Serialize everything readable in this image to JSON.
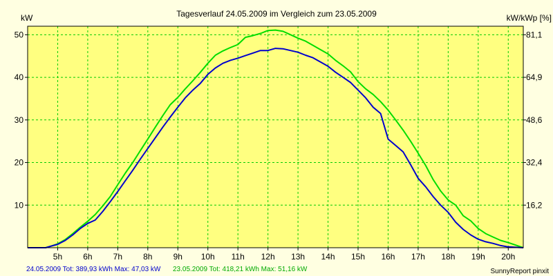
{
  "chart_data": {
    "type": "line",
    "title": "Tagesverlauf 24.05.2009 im Vergleich zum 23.05.2009",
    "ylabel": "kW",
    "ylabel_right": "kW/kWp [%]",
    "ylim": [
      0,
      52
    ],
    "yticks": [
      10,
      20,
      30,
      40,
      50
    ],
    "yticks_right": [
      {
        "y": 10,
        "label": "16,2"
      },
      {
        "y": 20,
        "label": "32,4"
      },
      {
        "y": 30,
        "label": "48,6"
      },
      {
        "y": 40,
        "label": "64,9"
      },
      {
        "y": 50,
        "label": "81,1"
      }
    ],
    "xlim": [
      4.0,
      20.5
    ],
    "xticks": [
      5,
      6,
      7,
      8,
      9,
      10,
      11,
      12,
      13,
      14,
      15,
      16,
      17,
      18,
      19,
      20
    ],
    "xtick_labels": [
      "5h",
      "6h",
      "7h",
      "8h",
      "9h",
      "10h",
      "11h",
      "12h",
      "13h",
      "14h",
      "15h",
      "16h",
      "17h",
      "18h",
      "19h",
      "20h"
    ],
    "grid": true,
    "background": "#ffffe1",
    "plot_background": "#ffff80",
    "grid_color": "#00cc00",
    "series": [
      {
        "name": "24.05.2009",
        "color": "#0000cc",
        "x": [
          4.0,
          4.6,
          4.75,
          5.0,
          5.25,
          5.5,
          5.75,
          6.0,
          6.25,
          6.5,
          6.75,
          7.0,
          7.25,
          7.5,
          7.75,
          8.0,
          8.25,
          8.5,
          8.75,
          9.0,
          9.25,
          9.5,
          9.75,
          10.0,
          10.25,
          10.5,
          10.75,
          11.0,
          11.25,
          11.5,
          11.75,
          12.0,
          12.25,
          12.5,
          12.75,
          13.0,
          13.25,
          13.5,
          13.75,
          14.0,
          14.25,
          14.5,
          14.75,
          15.0,
          15.25,
          15.5,
          15.75,
          16.0,
          16.25,
          16.5,
          16.75,
          17.0,
          17.25,
          17.5,
          17.75,
          18.0,
          18.25,
          18.5,
          18.75,
          19.0,
          19.25,
          19.5,
          19.75,
          20.0,
          20.5
        ],
        "y": [
          0,
          0,
          0.3,
          0.8,
          1.7,
          3.0,
          4.5,
          5.7,
          6.5,
          8.5,
          10.8,
          13.2,
          15.7,
          18.2,
          20.8,
          23.3,
          25.8,
          28.3,
          30.7,
          33.0,
          35.2,
          37.0,
          38.6,
          40.7,
          42.2,
          43.3,
          44.0,
          44.5,
          45.1,
          45.7,
          46.3,
          46.3,
          46.8,
          46.7,
          46.3,
          45.9,
          45.2,
          44.6,
          43.6,
          42.6,
          41.2,
          40.0,
          38.8,
          37.0,
          35.2,
          33.0,
          31.5,
          25.5,
          24.0,
          22.5,
          19.5,
          16.3,
          14.3,
          12.0,
          10.0,
          8.3,
          6.0,
          4.3,
          3.0,
          2.0,
          1.4,
          1.0,
          0.5,
          0.2,
          0
        ]
      },
      {
        "name": "23.05.2009",
        "color": "#00dd00",
        "x": [
          4.0,
          4.6,
          4.75,
          5.0,
          5.25,
          5.5,
          5.75,
          6.0,
          6.25,
          6.5,
          6.75,
          7.0,
          7.25,
          7.5,
          7.75,
          8.0,
          8.25,
          8.5,
          8.75,
          9.0,
          9.25,
          9.5,
          9.75,
          10.0,
          10.25,
          10.5,
          10.75,
          11.0,
          11.25,
          11.5,
          11.75,
          12.0,
          12.25,
          12.5,
          12.75,
          13.0,
          13.25,
          13.5,
          13.75,
          14.0,
          14.25,
          14.5,
          14.75,
          15.0,
          15.25,
          15.5,
          15.75,
          16.0,
          16.25,
          16.5,
          16.75,
          17.0,
          17.25,
          17.5,
          17.75,
          18.0,
          18.25,
          18.5,
          18.75,
          19.0,
          19.25,
          19.5,
          19.75,
          20.0,
          20.5
        ],
        "y": [
          0,
          0,
          0.3,
          0.9,
          1.9,
          3.3,
          4.8,
          6.2,
          7.8,
          9.8,
          12.0,
          14.8,
          17.5,
          20.0,
          22.8,
          25.5,
          28.3,
          31.0,
          33.6,
          35.3,
          37.3,
          39.2,
          41.2,
          43.3,
          45.2,
          46.2,
          47.0,
          47.7,
          49.4,
          49.8,
          50.3,
          51.0,
          51.1,
          50.8,
          50.0,
          49.2,
          48.5,
          47.5,
          46.5,
          45.5,
          44.0,
          42.7,
          41.3,
          39.0,
          37.3,
          36.0,
          34.3,
          32.3,
          30.0,
          27.6,
          25.0,
          22.2,
          19.3,
          16.0,
          13.3,
          11.2,
          10.0,
          7.5,
          6.3,
          4.5,
          3.3,
          2.5,
          1.7,
          1.2,
          0
        ]
      }
    ]
  },
  "footer": {
    "series1_text": "24.05.2009 Tot: 389,93 kWh Max: 47,03 kW",
    "series2_text": "23.05.2009 Tot: 418,21 kWh Max: 51,16 kW",
    "credit": "SunnyReport pinxit"
  }
}
